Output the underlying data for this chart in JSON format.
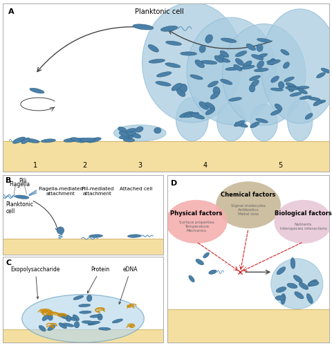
{
  "panel_A_label": "A",
  "panel_B_label": "B",
  "panel_C_label": "C",
  "panel_D_label": "D",
  "planktonic_cell_label": "Planktonic cell",
  "stage_labels": [
    "1",
    "2",
    "3",
    "4",
    "5"
  ],
  "flagella_label": "Flagella",
  "pili_label": "Pili",
  "planktonic_cell_b": "Planktonic\ncell",
  "flagella_mediated": "Flagella-mediated\nattachment",
  "pili_mediated": "Pili-mediated\nattachment",
  "attached_cell": "Attached cell",
  "exopolysaccharide": "Exopolysaccharide",
  "protein": "Protein",
  "edna": "eDNA",
  "chemical_factors": "Chemical factors",
  "chemical_sub": "Signal molecules\nAntibiotics\nMetal ions",
  "physical_factors": "Physical factors",
  "physical_sub": "Surface properties\nTemperature\nMechanics",
  "biological_factors": "Biological factors",
  "biological_sub": "Nutrients\nInterspecies interactions",
  "bg_color": "#ffffff",
  "bacteria_blue": "#4a80a8",
  "bacteria_dark": "#2d5f80",
  "bacteria_mid": "#5a8fba",
  "surface_color": "#f5dfa0",
  "surface_edge": "#d4b870",
  "biofilm_color": "#90bcd8",
  "biofilm_fill": "#a8cce0",
  "arrow_color": "#444444",
  "red_arrow": "#cc2222",
  "chemical_circle_color": "#c8b898",
  "physical_circle_color": "#f5b0b0",
  "biological_circle_color": "#e8c8d8",
  "edna_color": "#cc8800",
  "protein_color": "#887755",
  "border_color": "#aaaaaa"
}
